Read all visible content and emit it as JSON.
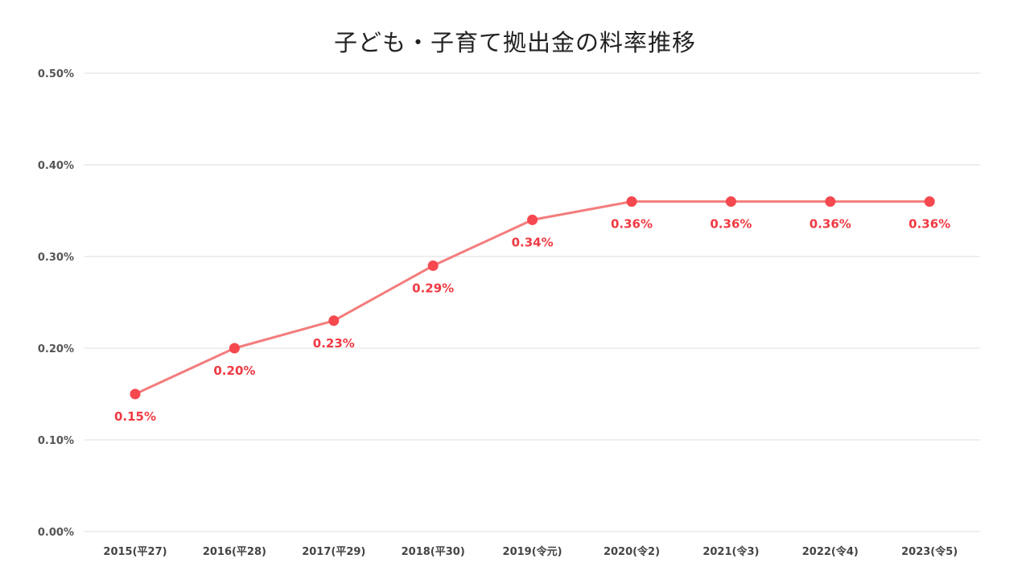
{
  "chart_data": {
    "type": "line",
    "title": "子ども・子育て拠出金の料率推移",
    "xlabel": "",
    "ylabel": "",
    "categories": [
      "2015(平27)",
      "2016(平28)",
      "2017(平29)",
      "2018(平30)",
      "2019(令元)",
      "2020(令2)",
      "2021(令3)",
      "2022(令4)",
      "2023(令5)"
    ],
    "values": [
      0.15,
      0.2,
      0.23,
      0.29,
      0.34,
      0.36,
      0.36,
      0.36,
      0.36
    ],
    "data_labels": [
      "0.15%",
      "0.20%",
      "0.23%",
      "0.29%",
      "0.34%",
      "0.36%",
      "0.36%",
      "0.36%",
      "0.36%"
    ],
    "ylim": [
      0,
      0.5
    ],
    "yticks": [
      0.0,
      0.1,
      0.2,
      0.3,
      0.4,
      0.5
    ],
    "ytick_labels": [
      "0.00%",
      "0.10%",
      "0.20%",
      "0.30%",
      "0.40%",
      "0.50%"
    ],
    "grid": true,
    "legend": "none",
    "colors": {
      "line": "#f47c7c",
      "marker": "#f5484f",
      "label": "#f03a43",
      "grid": "#dddddd"
    }
  }
}
